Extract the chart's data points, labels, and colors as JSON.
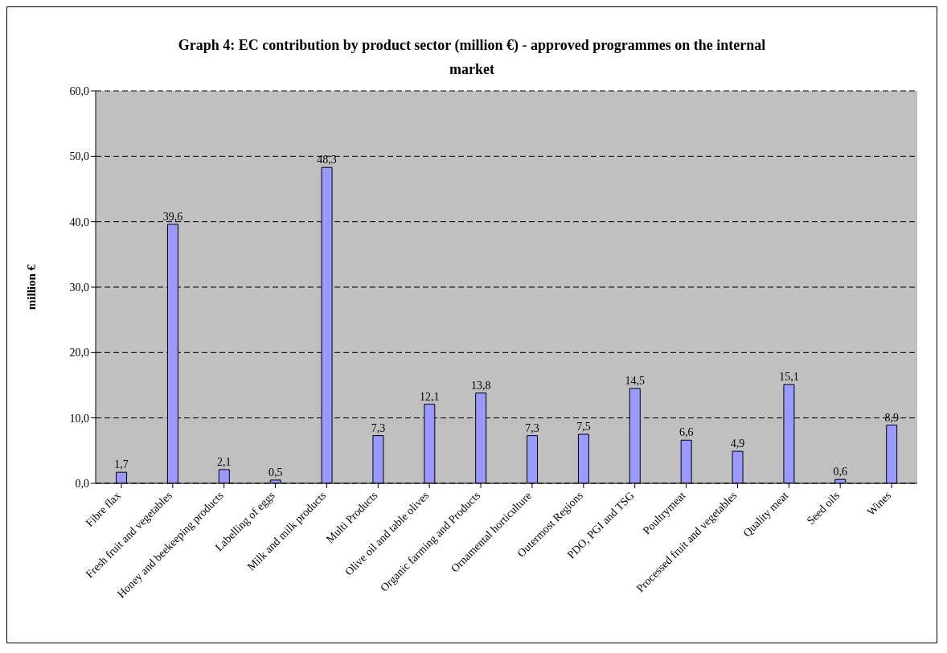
{
  "chart_data": {
    "type": "bar",
    "title": "Graph 4: EC contribution by product sector (million €) - approved programmes on the internal market",
    "ylabel": "million €",
    "categories": [
      "Fibre flax",
      "Fresh fruit and vegetables",
      "Honey and beekeeping products",
      "Labelling of eggs",
      "Milk and milk products",
      "Multi Products",
      "Olive oil and table olives",
      "Organic farming and Products",
      "Ornamental horticulture",
      "Outermost Regions",
      "PDO, PGI and TSG",
      "Poultrymeat",
      "Processed fruit and vegetables",
      "Quality meat",
      "Seed oils",
      "Wines"
    ],
    "values": [
      1.7,
      39.6,
      2.1,
      0.5,
      48.3,
      7.3,
      12.1,
      13.8,
      7.3,
      7.5,
      14.5,
      6.6,
      4.9,
      15.1,
      0.6,
      8.9
    ],
    "value_labels": [
      "1,7",
      "39,6",
      "2,1",
      "0,5",
      "48,3",
      "7,3",
      "12,1",
      "13,8",
      "7,3",
      "7,5",
      "14,5",
      "6,6",
      "4,9",
      "15,1",
      "0,6",
      "8,9"
    ],
    "color": "#9999ff",
    "ylim": [
      0,
      60
    ],
    "yticks": [
      {
        "value": 0,
        "label": "0,0"
      },
      {
        "value": 10,
        "label": "10,0"
      },
      {
        "value": 20,
        "label": "20,0"
      },
      {
        "value": 30,
        "label": "30,0"
      },
      {
        "value": 40,
        "label": "40,0"
      },
      {
        "value": 50,
        "label": "50,0"
      },
      {
        "value": 60,
        "label": "60,0"
      }
    ],
    "grid": "y"
  }
}
